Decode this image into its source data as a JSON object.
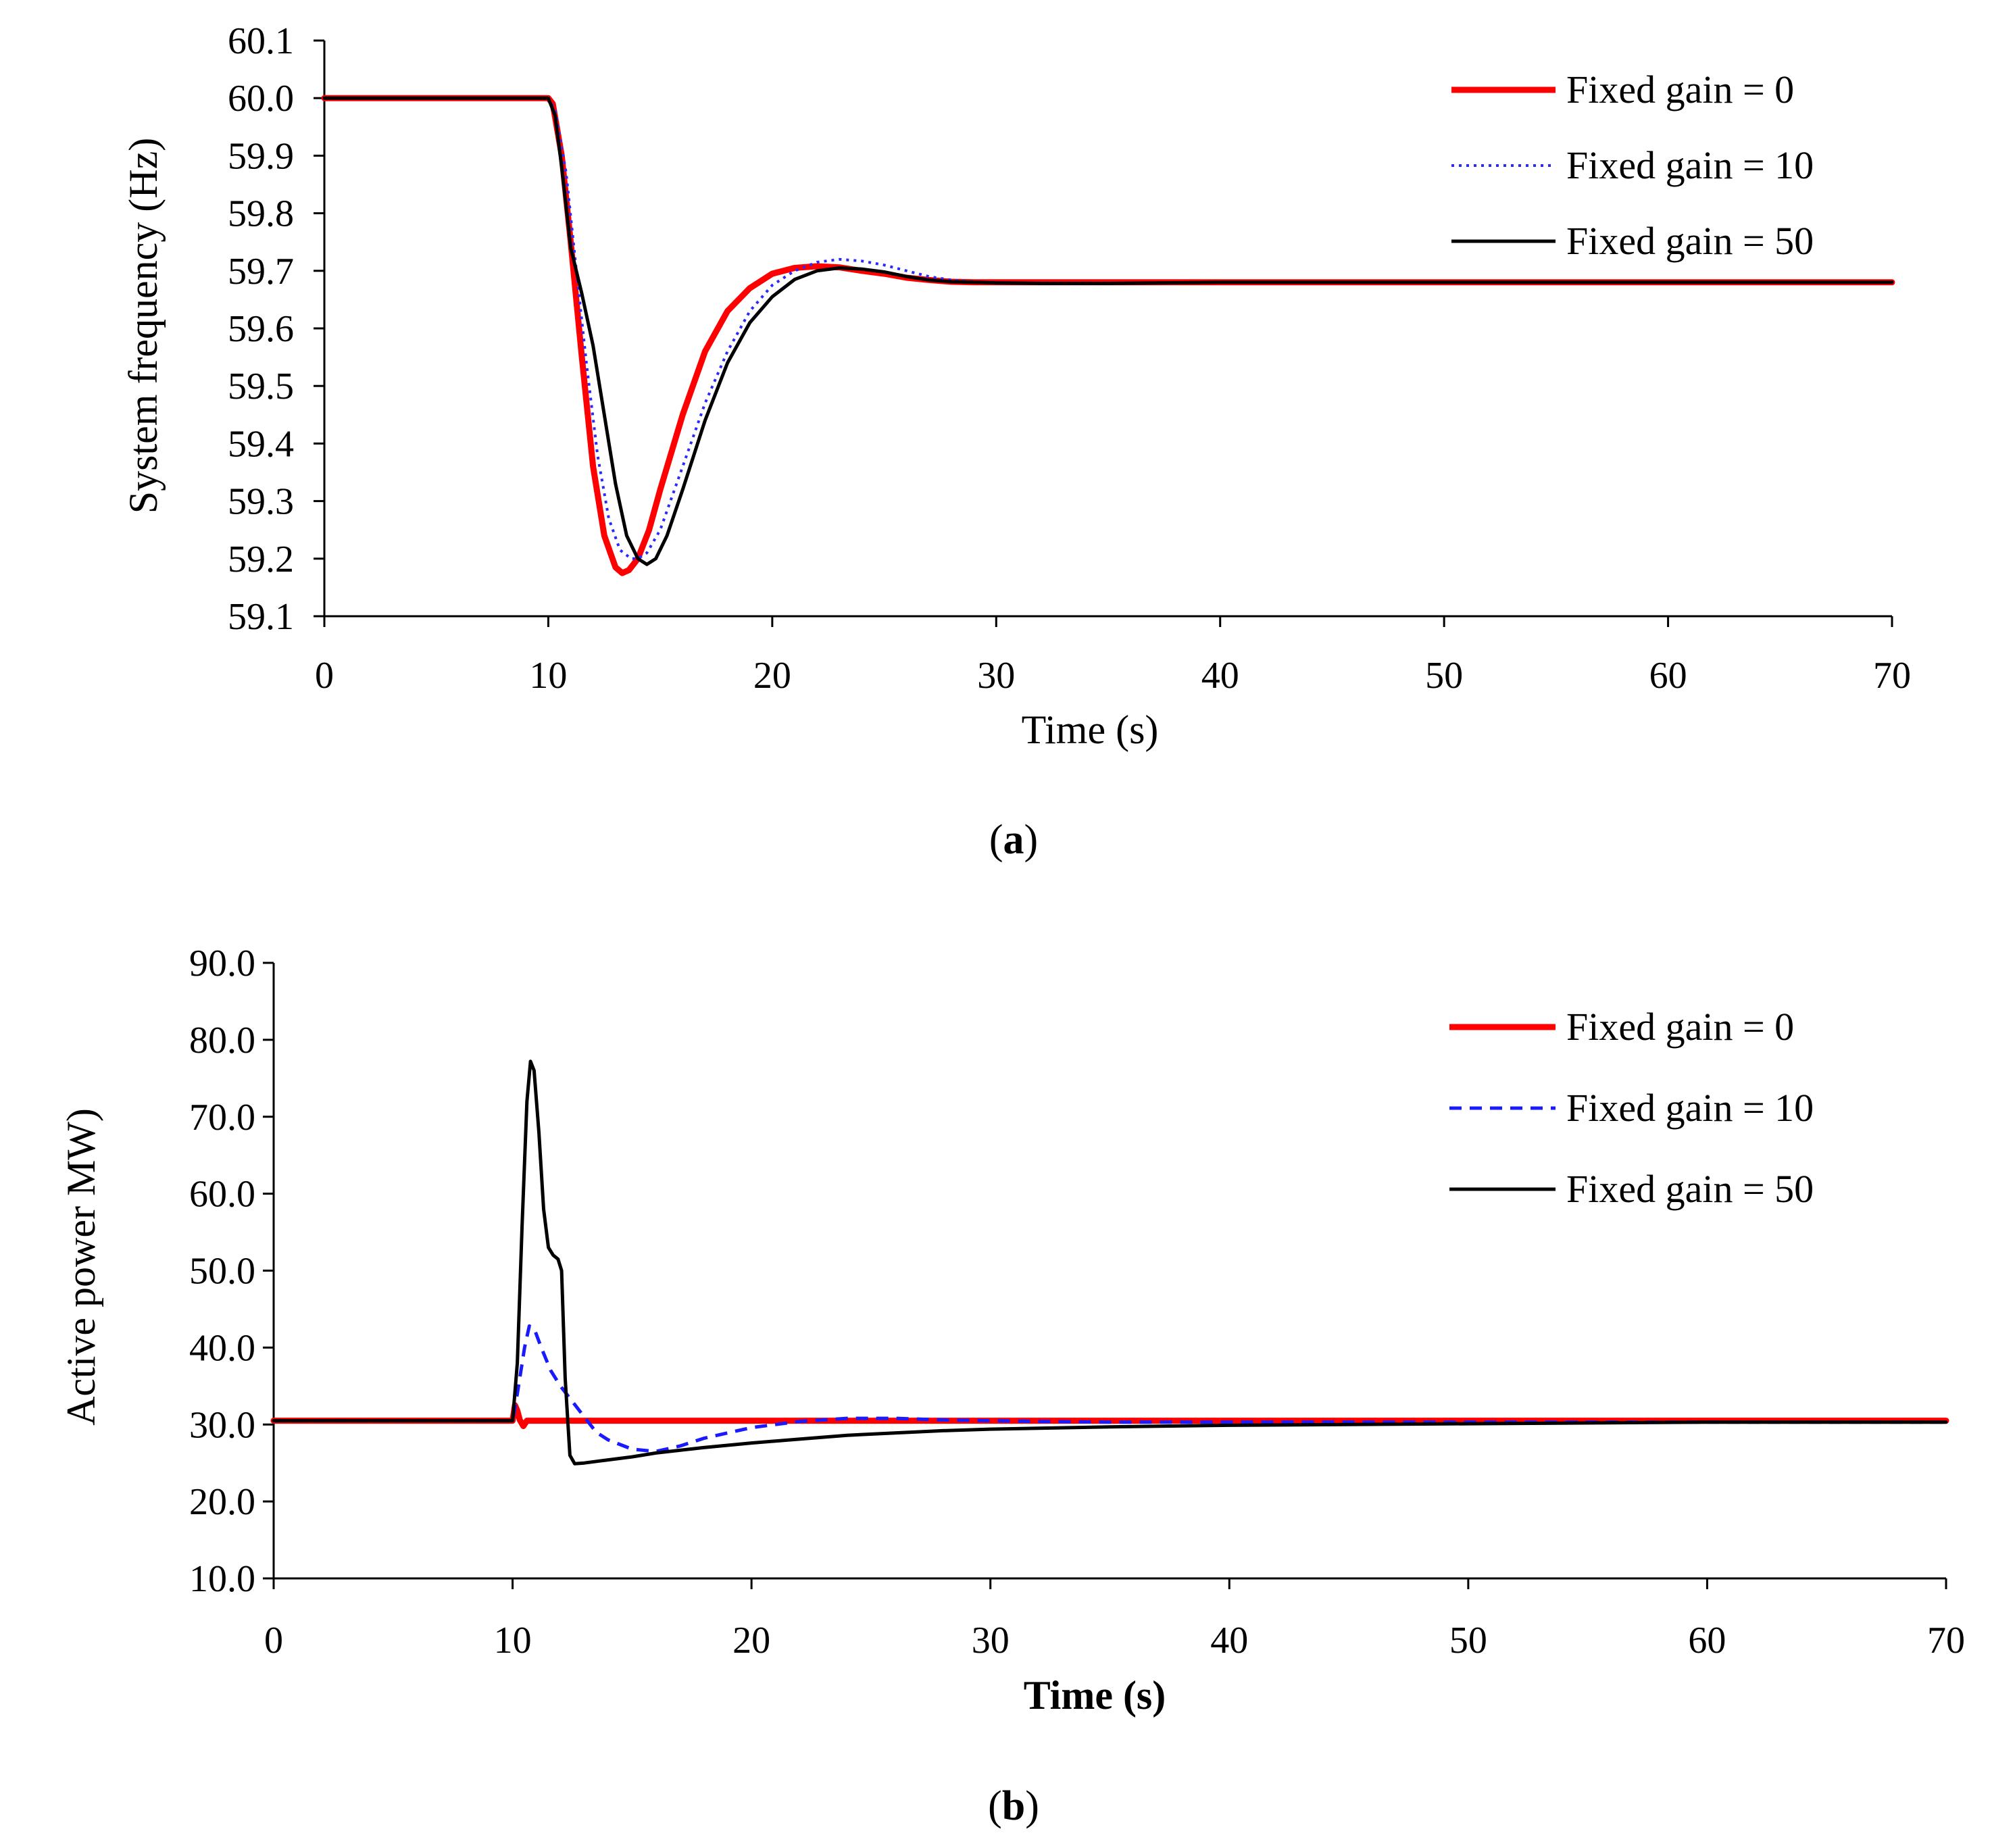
{
  "figure_captions": [
    {
      "open": "(",
      "letter": "a",
      "close": ")"
    },
    {
      "open": "(",
      "letter": "b",
      "close": ")"
    }
  ],
  "chart_data": [
    {
      "type": "line",
      "title": "",
      "xlabel": "Time (s)",
      "ylabel": "System frequency (Hz)",
      "xlim": [
        0,
        70
      ],
      "ylim": [
        59.1,
        60.1
      ],
      "xticks": [
        0,
        10,
        20,
        30,
        40,
        50,
        60,
        70
      ],
      "xtick_labels": [
        "0",
        "10",
        "20",
        "30",
        "40",
        "50",
        "60",
        "70"
      ],
      "yticks": [
        59.1,
        59.2,
        59.3,
        59.4,
        59.5,
        59.6,
        59.7,
        59.8,
        59.9,
        60.0,
        60.1
      ],
      "ytick_labels": [
        "59.1",
        "59.2",
        "59.3",
        "59.4",
        "59.5",
        "59.6",
        "59.7",
        "59.8",
        "59.9",
        "60.0",
        "60.1"
      ],
      "grid": false,
      "legend_position": "top-right",
      "series": [
        {
          "name": "Fixed gain = 0",
          "color": "#ff0000",
          "style": "solid-thick",
          "x": [
            0,
            10,
            10.2,
            10.6,
            11,
            11.5,
            12,
            12.5,
            13,
            13.3,
            13.6,
            14,
            14.5,
            15,
            16,
            17,
            18,
            19,
            20,
            21,
            22,
            23,
            24,
            25,
            26,
            27,
            28,
            29,
            30,
            32,
            35,
            40,
            50,
            60,
            70
          ],
          "y": [
            60.0,
            60.0,
            59.99,
            59.9,
            59.75,
            59.55,
            59.36,
            59.24,
            59.185,
            59.175,
            59.18,
            59.2,
            59.25,
            59.32,
            59.45,
            59.56,
            59.63,
            59.67,
            59.695,
            59.705,
            59.708,
            59.706,
            59.7,
            59.695,
            59.688,
            59.684,
            59.681,
            59.68,
            59.68,
            59.68,
            59.68,
            59.68,
            59.68,
            59.68,
            59.68
          ]
        },
        {
          "name": "Fixed gain = 10",
          "color": "#2a2aff",
          "style": "dotted",
          "x": [
            0,
            10,
            10.3,
            10.8,
            11.2,
            11.7,
            12.2,
            12.7,
            13.2,
            13.7,
            14,
            14.4,
            15,
            16,
            17,
            18,
            19,
            20,
            21,
            22,
            23,
            24,
            25,
            26,
            27,
            28,
            29,
            30,
            32,
            35,
            40,
            50,
            60,
            70
          ],
          "y": [
            60.0,
            60.0,
            59.98,
            59.87,
            59.72,
            59.54,
            59.38,
            59.27,
            59.215,
            59.2,
            59.2,
            59.21,
            59.25,
            59.36,
            59.47,
            59.56,
            59.63,
            59.675,
            59.7,
            59.715,
            59.72,
            59.717,
            59.71,
            59.7,
            59.69,
            59.684,
            59.681,
            59.68,
            59.679,
            59.679,
            59.68,
            59.68,
            59.68,
            59.68
          ]
        },
        {
          "name": "Fixed gain = 50",
          "color": "#000000",
          "style": "solid",
          "x": [
            0,
            10,
            10.3,
            10.6,
            11,
            11.5,
            12,
            12.5,
            13,
            13.5,
            14,
            14.4,
            14.8,
            15.3,
            16,
            17,
            18,
            19,
            20,
            21,
            22,
            23,
            24,
            25,
            26,
            27,
            28,
            29,
            30,
            32,
            35,
            40,
            50,
            60,
            70
          ],
          "y": [
            60.0,
            60.0,
            59.97,
            59.88,
            59.74,
            59.66,
            59.57,
            59.45,
            59.33,
            59.24,
            59.2,
            59.19,
            59.2,
            59.24,
            59.32,
            59.44,
            59.54,
            59.61,
            59.655,
            59.685,
            59.7,
            59.705,
            59.703,
            59.698,
            59.69,
            59.684,
            59.681,
            59.68,
            59.679,
            59.678,
            59.678,
            59.68,
            59.68,
            59.68,
            59.68
          ]
        }
      ]
    },
    {
      "type": "line",
      "title": "",
      "xlabel": "Time (s)",
      "ylabel": "Active power MW)",
      "xlim": [
        0,
        70
      ],
      "ylim": [
        10.0,
        90.0
      ],
      "xticks": [
        0,
        10,
        20,
        30,
        40,
        50,
        60,
        70
      ],
      "xtick_labels": [
        "0",
        "10",
        "20",
        "30",
        "40",
        "50",
        "60",
        "70"
      ],
      "yticks": [
        10,
        20,
        30,
        40,
        50,
        60,
        70,
        80,
        90
      ],
      "ytick_labels": [
        "10.0",
        "20.0",
        "30.0",
        "40.0",
        "50.0",
        "60.0",
        "70.0",
        "80.0",
        "90.0"
      ],
      "grid": false,
      "legend_position": "top-right",
      "series": [
        {
          "name": "Fixed gain = 0",
          "color": "#ff0000",
          "style": "solid-thick",
          "x": [
            0,
            10,
            10.1,
            10.2,
            10.3,
            10.45,
            10.6,
            10.8,
            12,
            20,
            30,
            40,
            50,
            60,
            70
          ],
          "y": [
            30.5,
            30.5,
            32.5,
            31.8,
            30.6,
            29.8,
            30.5,
            30.5,
            30.5,
            30.5,
            30.5,
            30.5,
            30.5,
            30.5,
            30.5
          ]
        },
        {
          "name": "Fixed gain = 10",
          "color": "#1a1aff",
          "style": "dashed",
          "x": [
            0,
            10,
            10.2,
            10.5,
            10.7,
            10.9,
            11.2,
            11.6,
            12,
            12.5,
            13,
            13.5,
            14,
            15,
            16,
            17,
            18,
            20,
            22,
            24,
            26,
            28,
            30,
            32,
            35,
            40,
            50,
            60,
            70
          ],
          "y": [
            30.5,
            30.5,
            34,
            40,
            42.8,
            42.5,
            40,
            37,
            35,
            33,
            31,
            29,
            28,
            26.8,
            26.5,
            27.2,
            28.2,
            29.6,
            30.4,
            30.8,
            30.8,
            30.6,
            30.5,
            30.4,
            30.3,
            30.3,
            30.3,
            30.3,
            30.3
          ]
        },
        {
          "name": "Fixed gain = 50",
          "color": "#000000",
          "style": "solid",
          "x": [
            0,
            10,
            10.2,
            10.4,
            10.6,
            10.75,
            10.9,
            11.1,
            11.3,
            11.5,
            11.7,
            11.9,
            12.05,
            12.2,
            12.4,
            12.6,
            13,
            14,
            15,
            16,
            18,
            20,
            22,
            24,
            26,
            28,
            30,
            35,
            40,
            50,
            60,
            70
          ],
          "y": [
            30.5,
            30.5,
            38,
            56,
            72,
            77.2,
            76,
            68,
            58,
            53,
            52,
            51.5,
            50,
            36,
            26,
            24.9,
            25,
            25.4,
            25.8,
            26.3,
            27,
            27.6,
            28.1,
            28.6,
            28.9,
            29.2,
            29.4,
            29.7,
            29.9,
            30.1,
            30.3,
            30.3
          ]
        }
      ]
    }
  ]
}
